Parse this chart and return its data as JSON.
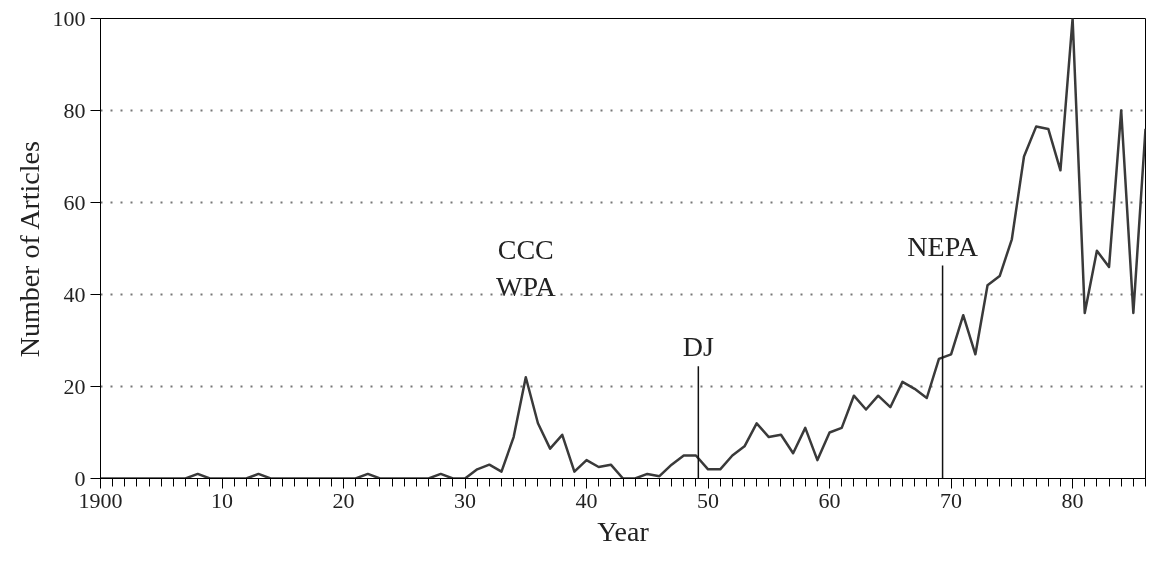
{
  "chart_data": {
    "type": "line",
    "xlabel": "Year",
    "ylabel": "Number of Articles",
    "x": [
      1900,
      1901,
      1902,
      1903,
      1904,
      1905,
      1906,
      1907,
      1908,
      1909,
      1910,
      1911,
      1912,
      1913,
      1914,
      1915,
      1916,
      1917,
      1918,
      1919,
      1920,
      1921,
      1922,
      1923,
      1924,
      1925,
      1926,
      1927,
      1928,
      1929,
      1930,
      1931,
      1932,
      1933,
      1934,
      1935,
      1936,
      1937,
      1938,
      1939,
      1940,
      1941,
      1942,
      1943,
      1944,
      1945,
      1946,
      1947,
      1948,
      1949,
      1950,
      1951,
      1952,
      1953,
      1954,
      1955,
      1956,
      1957,
      1958,
      1959,
      1960,
      1961,
      1962,
      1963,
      1964,
      1965,
      1966,
      1967,
      1968,
      1969,
      1970,
      1971,
      1972,
      1973,
      1974,
      1975,
      1976,
      1977,
      1978,
      1979,
      1980,
      1981,
      1982,
      1983,
      1984,
      1985,
      1986
    ],
    "series": [
      {
        "color": "#3a3a3a",
        "values": [
          0,
          0,
          0,
          0,
          0,
          0,
          0,
          0,
          1,
          0,
          0,
          0,
          0,
          1,
          0,
          0,
          0,
          0,
          0,
          0,
          0,
          0,
          1,
          0,
          0,
          0,
          0,
          0,
          1,
          0,
          0,
          2,
          3,
          1.5,
          9,
          22,
          12,
          6.5,
          9.5,
          1.5,
          4,
          2.5,
          3,
          0,
          0,
          1,
          0.5,
          3,
          5,
          5,
          2,
          2,
          5,
          7,
          12,
          9,
          9.5,
          5.5,
          11,
          4,
          10,
          11,
          18,
          15,
          18,
          15.5,
          21,
          19.5,
          17.5,
          26,
          27,
          35.5,
          27,
          42,
          44,
          52,
          70,
          76.5,
          76,
          67,
          100,
          36,
          49.5,
          46,
          80,
          36,
          76
        ]
      }
    ],
    "xlim": [
      1900,
      1986
    ],
    "xticks": [
      {
        "value": 1900,
        "label": "1900"
      },
      {
        "value": 1910,
        "label": "10"
      },
      {
        "value": 1920,
        "label": "20"
      },
      {
        "value": 1930,
        "label": "30"
      },
      {
        "value": 1940,
        "label": "40"
      },
      {
        "value": 1950,
        "label": "50"
      },
      {
        "value": 1960,
        "label": "60"
      },
      {
        "value": 1970,
        "label": "70"
      },
      {
        "value": 1980,
        "label": "80"
      }
    ],
    "ylim": [
      0,
      100
    ],
    "yticks": [
      0,
      20,
      40,
      60,
      80,
      100
    ],
    "grid": "y",
    "marker": "none",
    "line_style": "solid",
    "annotations": [
      {
        "text": "CCC\nWPA",
        "x": 1935,
        "y": 22
      }
    ],
    "ref_lines": [
      {
        "axis": "x",
        "value": 1949.2,
        "label": "DJ"
      },
      {
        "axis": "x",
        "value": 1969.3,
        "label": "NEPA"
      }
    ]
  }
}
